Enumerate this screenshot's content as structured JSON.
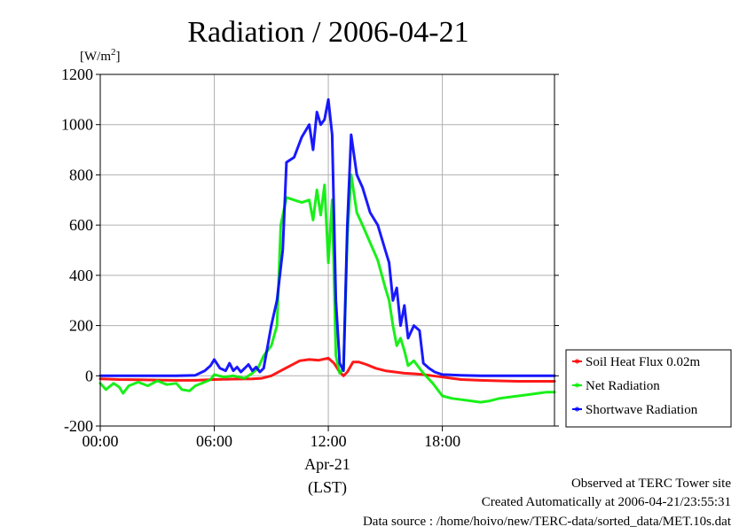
{
  "chart_data": {
    "type": "line",
    "title": "Radiation / 2006-04-21",
    "ylabel": "[W/m²]",
    "ylim": [
      -200,
      1200
    ],
    "yticks": [
      -200,
      0,
      200,
      400,
      600,
      800,
      1000,
      1200
    ],
    "xlim": [
      0,
      23.9
    ],
    "x_unit": "hour",
    "xticks": [
      {
        "value": 0,
        "label": "00:00"
      },
      {
        "value": 6,
        "label": "06:00"
      },
      {
        "value": 12,
        "label": "12:00"
      },
      {
        "value": 18,
        "label": "18:00"
      }
    ],
    "x_date_label": "Apr-21",
    "x_zone_label": "(LST)",
    "grid": true,
    "legend_position": "right",
    "series": [
      {
        "name": "Soil Heat Flux 0.02m",
        "color": "#ff0000",
        "x": [
          0,
          1,
          2,
          3,
          4,
          5,
          6,
          7,
          8,
          8.5,
          9,
          9.5,
          10,
          10.5,
          11,
          11.5,
          12,
          12.3,
          12.6,
          12.8,
          13,
          13.3,
          13.6,
          14,
          14.5,
          15,
          15.5,
          16,
          16.5,
          17,
          17.5,
          18,
          19,
          20,
          21,
          22,
          23,
          23.9
        ],
        "y": [
          -12,
          -15,
          -16,
          -17,
          -18,
          -18,
          -15,
          -13,
          -12,
          -10,
          0,
          20,
          40,
          60,
          65,
          62,
          70,
          50,
          15,
          0,
          15,
          55,
          55,
          45,
          30,
          20,
          15,
          10,
          8,
          5,
          0,
          -5,
          -15,
          -18,
          -20,
          -22,
          -22,
          -22
        ]
      },
      {
        "name": "Net Radiation",
        "color": "#00ee00",
        "x": [
          0,
          0.3,
          0.7,
          1.0,
          1.2,
          1.5,
          2.0,
          2.5,
          3.0,
          3.5,
          4.0,
          4.3,
          4.7,
          5.0,
          5.5,
          5.8,
          6.0,
          6.5,
          7.0,
          7.3,
          7.6,
          8.0,
          8.3,
          8.6,
          9.0,
          9.3,
          9.5,
          9.8,
          10.2,
          10.6,
          11.0,
          11.2,
          11.4,
          11.6,
          11.8,
          12.0,
          12.2,
          12.4,
          12.6,
          12.8,
          13.0,
          13.2,
          13.5,
          13.8,
          14.2,
          14.6,
          15.0,
          15.2,
          15.4,
          15.6,
          15.8,
          16.0,
          16.2,
          16.5,
          16.8,
          17.0,
          17.5,
          18.0,
          18.5,
          19.0,
          19.5,
          20.0,
          20.5,
          21.0,
          21.5,
          22.0,
          22.5,
          23.0,
          23.5,
          23.9
        ],
        "y": [
          -30,
          -55,
          -30,
          -45,
          -70,
          -40,
          -25,
          -40,
          -20,
          -35,
          -30,
          -55,
          -60,
          -40,
          -25,
          -15,
          5,
          -5,
          0,
          -5,
          -10,
          10,
          30,
          80,
          120,
          200,
          600,
          710,
          700,
          690,
          700,
          620,
          740,
          640,
          760,
          450,
          700,
          80,
          10,
          30,
          550,
          800,
          650,
          600,
          530,
          460,
          350,
          300,
          200,
          120,
          150,
          100,
          40,
          60,
          30,
          10,
          -30,
          -80,
          -90,
          -95,
          -100,
          -105,
          -100,
          -90,
          -85,
          -80,
          -75,
          -70,
          -65,
          -65
        ]
      },
      {
        "name": "Shortwave Radiation",
        "color": "#0000ff",
        "x": [
          0,
          1,
          2,
          3,
          4,
          5,
          5.5,
          5.8,
          6.0,
          6.3,
          6.6,
          6.8,
          7.0,
          7.2,
          7.4,
          7.6,
          7.8,
          8.0,
          8.2,
          8.4,
          8.6,
          9.0,
          9.3,
          9.6,
          9.8,
          10.2,
          10.6,
          11.0,
          11.2,
          11.4,
          11.6,
          11.8,
          12.0,
          12.2,
          12.4,
          12.6,
          12.8,
          13.0,
          13.2,
          13.5,
          13.8,
          14.2,
          14.6,
          15.0,
          15.2,
          15.4,
          15.6,
          15.8,
          16.0,
          16.2,
          16.5,
          16.8,
          17.0,
          17.3,
          17.6,
          18.0,
          19.0,
          20.0,
          21.0,
          22.0,
          23.0,
          23.9
        ],
        "y": [
          0,
          0,
          0,
          0,
          0,
          2,
          20,
          40,
          65,
          30,
          20,
          50,
          20,
          35,
          15,
          30,
          45,
          20,
          35,
          15,
          30,
          200,
          300,
          500,
          850,
          870,
          950,
          1000,
          900,
          1050,
          1000,
          1020,
          1100,
          960,
          300,
          50,
          20,
          600,
          960,
          800,
          750,
          650,
          600,
          500,
          450,
          300,
          350,
          200,
          280,
          150,
          200,
          180,
          50,
          30,
          15,
          5,
          2,
          0,
          0,
          0,
          0,
          0
        ]
      }
    ]
  },
  "footer": {
    "line1": "Observed at TERC Tower site",
    "line2": "Created Automatically at 2006-04-21/23:55:31",
    "line3": "Data source : /home/hoivo/new/TERC-data/sorted_data/MET.10s.dat"
  }
}
